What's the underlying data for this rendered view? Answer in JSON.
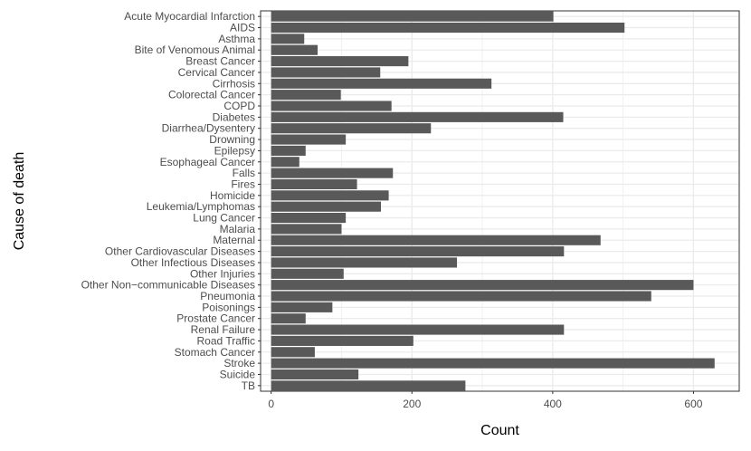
{
  "chart_data": {
    "type": "bar",
    "orientation": "horizontal",
    "xlabel": "Count",
    "ylabel": "Cause of death",
    "xlim": [
      -15,
      665
    ],
    "xticks": [
      0,
      200,
      400,
      600
    ],
    "grid": true,
    "legend": "none",
    "bar_color": "#595959",
    "categories": [
      "Acute Myocardial Infarction",
      "AIDS",
      "Asthma",
      "Bite of Venomous Animal",
      "Breast Cancer",
      "Cervical Cancer",
      "Cirrhosis",
      "Colorectal Cancer",
      "COPD",
      "Diabetes",
      "Diarrhea/Dysentery",
      "Drowning",
      "Epilepsy",
      "Esophageal Cancer",
      "Falls",
      "Fires",
      "Homicide",
      "Leukemia/Lymphomas",
      "Lung Cancer",
      "Malaria",
      "Maternal",
      "Other Cardiovascular Diseases",
      "Other Infectious Diseases",
      "Other Injuries",
      "Other Non−communicable Diseases",
      "Pneumonia",
      "Poisonings",
      "Prostate Cancer",
      "Renal Failure",
      "Road Traffic",
      "Stomach Cancer",
      "Stroke",
      "Suicide",
      "TB"
    ],
    "values": [
      401,
      502,
      47,
      66,
      195,
      155,
      313,
      99,
      171,
      415,
      227,
      106,
      49,
      40,
      173,
      122,
      167,
      156,
      106,
      100,
      468,
      416,
      264,
      103,
      600,
      540,
      87,
      49,
      416,
      202,
      62,
      630,
      124,
      276
    ]
  }
}
